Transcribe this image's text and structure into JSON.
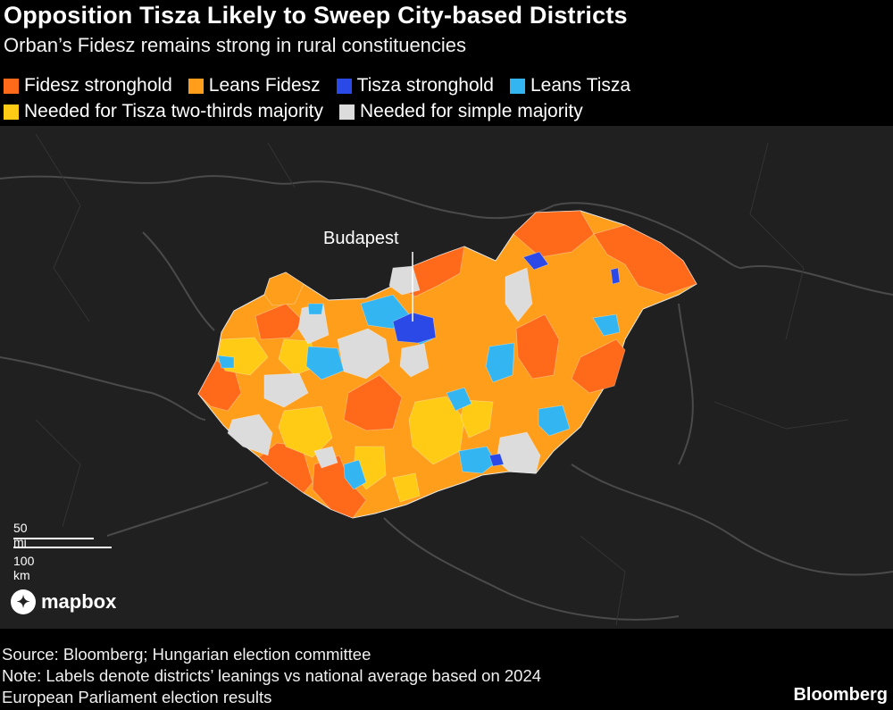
{
  "title": "Opposition Tisza Likely to Sweep City-based Districts",
  "subtitle": "Orban’s Fidesz remains strong in rural constituencies",
  "legend": [
    {
      "label": "Fidesz stronghold",
      "color": "#ff6a1a"
    },
    {
      "label": "Leans Fidesz",
      "color": "#ff9e1b"
    },
    {
      "label": "Tisza stronghold",
      "color": "#2b49e6"
    },
    {
      "label": "Leans Tisza",
      "color": "#33b5f2"
    },
    {
      "label": "Needed for Tisza two-thirds majority",
      "color": "#ffcb14"
    },
    {
      "label": "Needed for simple majority",
      "color": "#dcdcdc"
    }
  ],
  "map": {
    "city_label": "Budapest",
    "scale_mi": "50 mi",
    "scale_km": "100 km",
    "attribution": "mapbox"
  },
  "footer": {
    "source": "Source: Bloomberg; Hungarian election committee",
    "note_line1": "Note: Labels denote districts’ leanings vs national average based on 2024",
    "note_line2": "European Parliament election results"
  },
  "brand": "Bloomberg"
}
